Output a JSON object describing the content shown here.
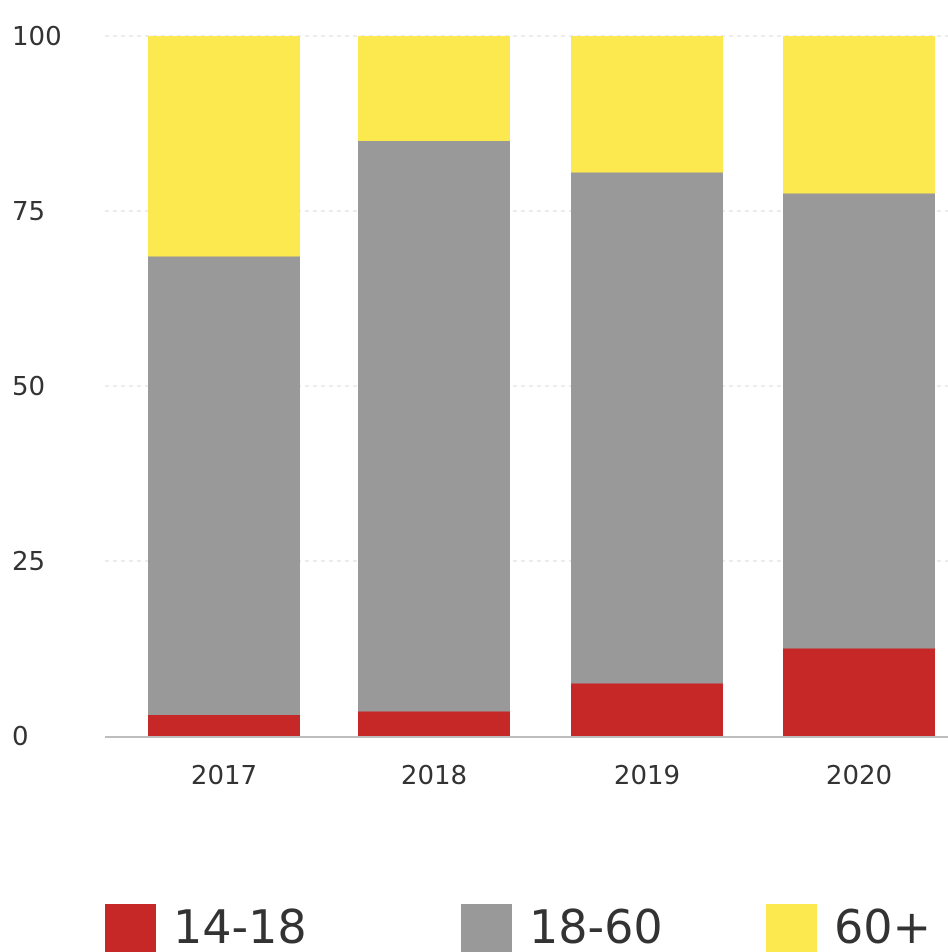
{
  "chart_data": {
    "type": "bar",
    "stacked": true,
    "categories": [
      "2017",
      "2018",
      "2019",
      "2020"
    ],
    "series": [
      {
        "name": "14-18",
        "color": "#c62828",
        "values": [
          3,
          3.5,
          7.5,
          12.5
        ]
      },
      {
        "name": "18-60",
        "color": "#999999",
        "values": [
          65.5,
          81.5,
          73,
          65
        ]
      },
      {
        "name": "60+",
        "color": "#fce94f",
        "values": [
          31.5,
          15,
          19.5,
          22.5
        ]
      }
    ],
    "ylim": [
      0,
      100
    ],
    "yticks": [
      0,
      25,
      50,
      75,
      100
    ],
    "ytick_labels": [
      "0",
      "25",
      "50",
      "75",
      "100"
    ],
    "grid": true,
    "legend_position": "bottom"
  }
}
